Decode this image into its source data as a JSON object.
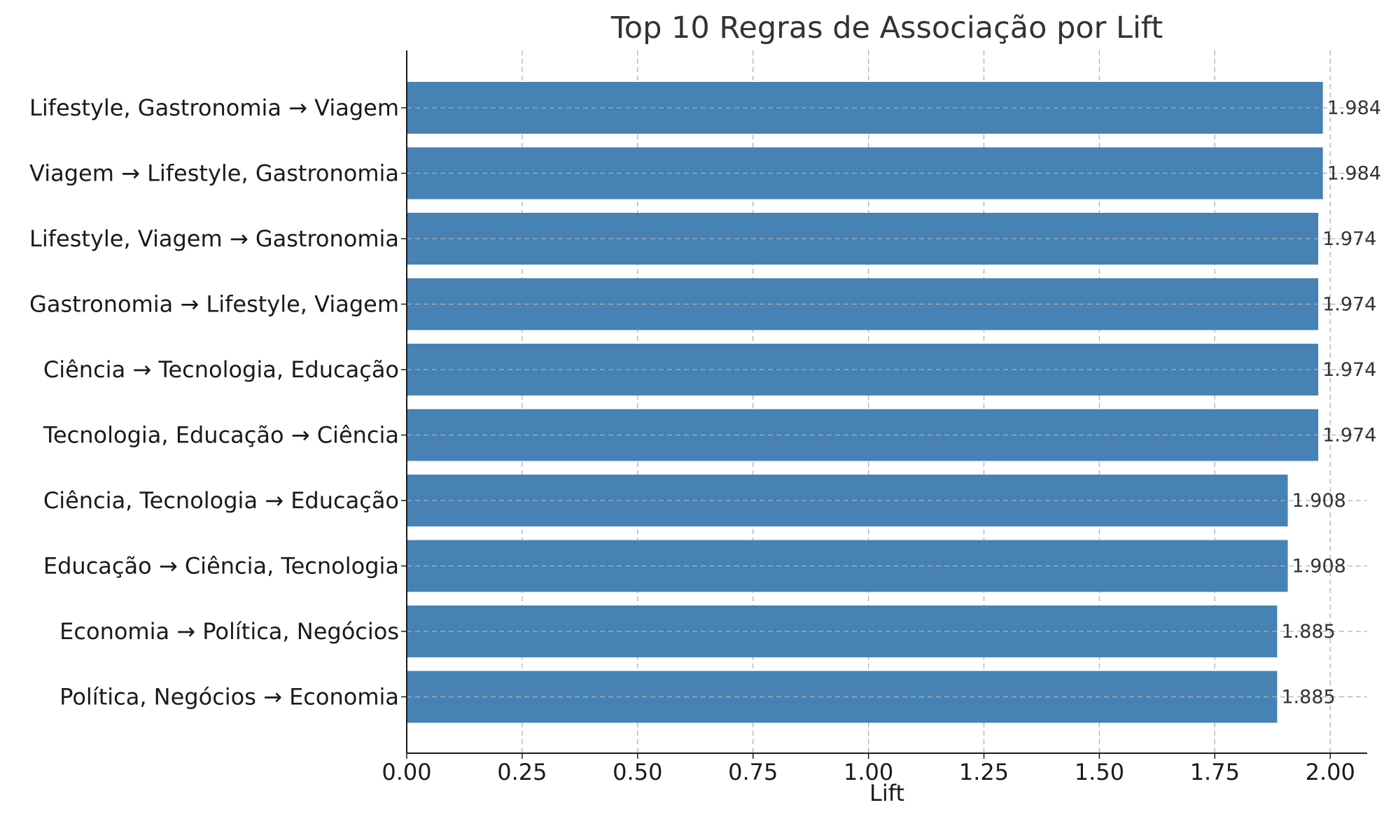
{
  "chart_data": {
    "type": "bar",
    "orientation": "horizontal",
    "title": "Top 10 Regras de Associação por Lift",
    "xlabel": "Lift",
    "ylabel": "",
    "xlim": [
      0,
      2.08
    ],
    "xticks": [
      0.0,
      0.25,
      0.5,
      0.75,
      1.0,
      1.25,
      1.5,
      1.75,
      2.0
    ],
    "xtick_labels": [
      "0.00",
      "0.25",
      "0.50",
      "0.75",
      "1.00",
      "1.25",
      "1.50",
      "1.75",
      "2.00"
    ],
    "grid": true,
    "bar_color": "#4682b4",
    "categories": [
      "Lifestyle, Gastronomia → Viagem",
      "Viagem → Lifestyle, Gastronomia",
      "Lifestyle, Viagem → Gastronomia",
      "Gastronomia → Lifestyle, Viagem",
      "Ciência → Tecnologia, Educação",
      "Tecnologia, Educação → Ciência",
      "Ciência, Tecnologia → Educação",
      "Educação → Ciência, Tecnologia",
      "Economia → Política, Negócios",
      "Política, Negócios → Economia"
    ],
    "values": [
      1.984,
      1.984,
      1.974,
      1.974,
      1.974,
      1.974,
      1.908,
      1.908,
      1.885,
      1.885
    ],
    "value_labels": [
      "1.984",
      "1.984",
      "1.974",
      "1.974",
      "1.974",
      "1.974",
      "1.908",
      "1.908",
      "1.885",
      "1.885"
    ]
  }
}
